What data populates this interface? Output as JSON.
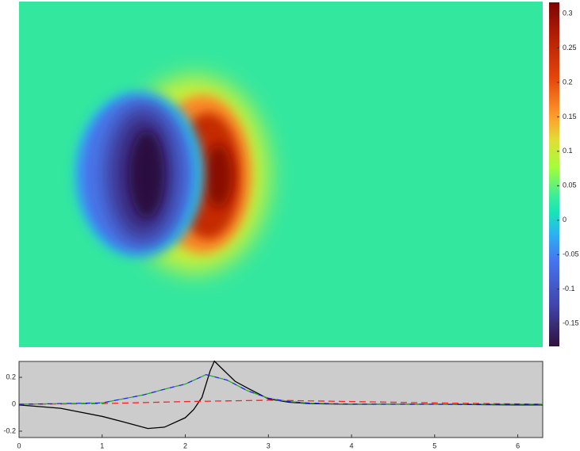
{
  "chart_data": [
    {
      "type": "heatmap",
      "zlim": [
        -0.183,
        0.316
      ],
      "zticks": [
        -0.15,
        -0.1,
        -0.05,
        0,
        0.05,
        0.1,
        0.15,
        0.2,
        0.25,
        0.3
      ]
    },
    {
      "type": "line",
      "xlim": [
        0,
        6.3
      ],
      "xticks": [
        0,
        1,
        2,
        3,
        4,
        5,
        6
      ],
      "ylim": [
        -0.247,
        0.318
      ],
      "yticks": [
        -0.2,
        0,
        0.2
      ],
      "series": [
        {
          "color": "#000000",
          "dash": "none",
          "x": [
            0,
            0.5,
            1.0,
            1.25,
            1.55,
            1.75,
            2.0,
            2.1,
            2.2,
            2.3,
            2.35,
            2.45,
            2.6,
            2.75,
            3.0,
            3.25,
            3.5,
            4,
            5,
            6,
            6.3
          ],
          "values": [
            -0.005,
            -0.03,
            -0.09,
            -0.13,
            -0.18,
            -0.17,
            -0.1,
            -0.04,
            0.05,
            0.25,
            0.32,
            0.26,
            0.17,
            0.12,
            0.04,
            0.015,
            0.005,
            0,
            0,
            -0.005,
            -0.005
          ]
        },
        {
          "color": "#ff2020",
          "dash": "8 5",
          "x": [
            0,
            1,
            2,
            3,
            4,
            5,
            6.3
          ],
          "values": [
            0,
            0.005,
            0.02,
            0.03,
            0.02,
            0.01,
            0
          ]
        },
        {
          "color": "#2020ff",
          "dash": "6 6",
          "x": [
            0,
            1,
            1.5,
            1.8,
            2.0,
            2.25,
            2.5,
            2.75,
            3.0,
            3.25,
            3.5,
            4,
            5,
            6.3
          ],
          "values": [
            0,
            0.01,
            0.07,
            0.12,
            0.15,
            0.22,
            0.18,
            0.1,
            0.045,
            0.02,
            0.008,
            0.002,
            0,
            0
          ]
        },
        {
          "color": "#20b020",
          "dash": "6 6",
          "offset": 6,
          "x": [
            0,
            1,
            1.5,
            1.8,
            2.0,
            2.25,
            2.5,
            2.75,
            3.0,
            3.25,
            3.5,
            4,
            5,
            6.3
          ],
          "values": [
            0,
            0.01,
            0.07,
            0.12,
            0.15,
            0.22,
            0.18,
            0.1,
            0.045,
            0.02,
            0.008,
            0.002,
            0,
            0
          ]
        }
      ]
    }
  ]
}
